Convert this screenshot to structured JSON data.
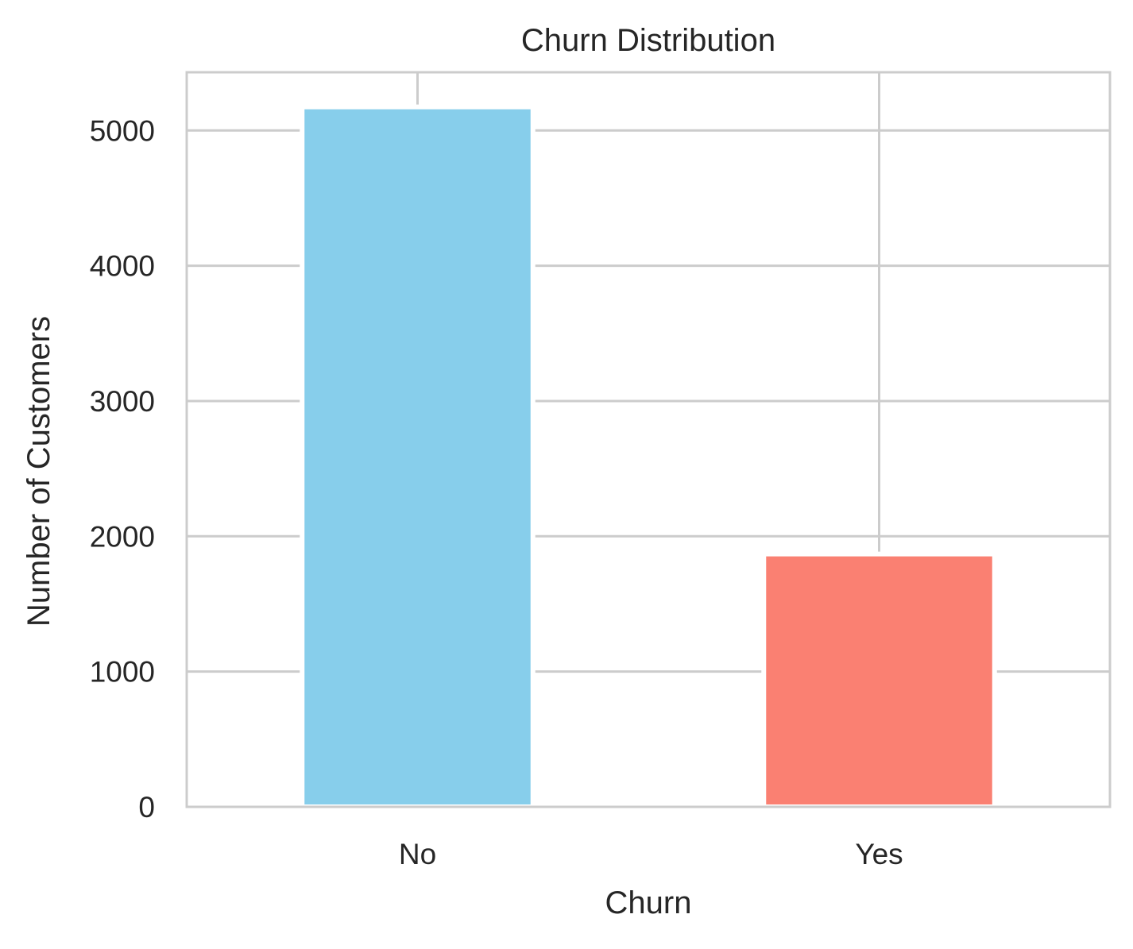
{
  "chart_data": {
    "type": "bar",
    "title": "Churn Distribution",
    "xlabel": "Churn",
    "ylabel": "Number of Customers",
    "categories": [
      "No",
      "Yes"
    ],
    "values": [
      5174,
      1869
    ],
    "colors": [
      "#87ceeb",
      "#fa8072"
    ],
    "ylim": [
      0,
      5430
    ],
    "yticks": [
      0,
      1000,
      2000,
      3000,
      4000,
      5000
    ],
    "grid": true,
    "legend": "none"
  },
  "colors": {
    "grid": "#cccccc",
    "text": "#262626",
    "background": "#ffffff"
  }
}
